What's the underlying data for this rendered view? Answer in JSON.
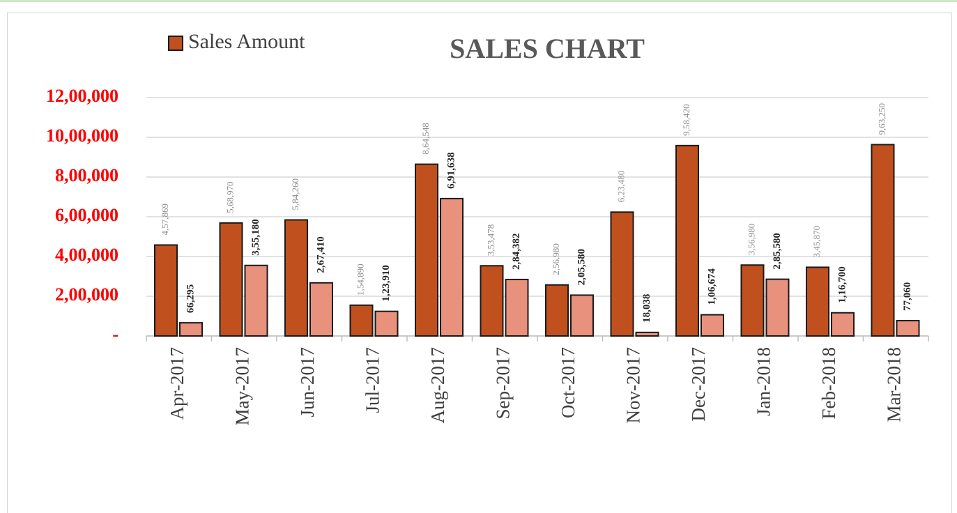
{
  "chart_data": {
    "type": "bar",
    "title": "SALES CHART",
    "categories": [
      "Apr-2017",
      "May-2017",
      "Jun-2017",
      "Jul-2017",
      "Aug-2017",
      "Sep-2017",
      "Oct-2017",
      "Nov-2017",
      "Dec-2017",
      "Jan-2018",
      "Feb-2018",
      "Mar-2018"
    ],
    "series": [
      {
        "name": "Sales Amount",
        "color": "#c0501e",
        "values": [
          457869,
          568970,
          584260,
          154890,
          864548,
          353478,
          256980,
          623480,
          958420,
          356980,
          345870,
          963250
        ],
        "value_labels": [
          "4,57,869",
          "5,68,970",
          "5,84,260",
          "1,54,890",
          "8,64,548",
          "3,53,478",
          "2,56,980",
          "6,23,480",
          "9,58,420",
          "3,56,980",
          "3,45,870",
          "9,63,250"
        ]
      },
      {
        "color": "#e8917c",
        "values": [
          66295,
          355180,
          267410,
          123910,
          691638,
          284382,
          205580,
          18038,
          106674,
          285580,
          116700,
          77060
        ],
        "value_labels": [
          "66,295",
          "3,55,180",
          "2,67,410",
          "1,23,910",
          "6,91,638",
          "2,84,382",
          "2,05,580",
          "18,038",
          "1,06,674",
          "2,85,580",
          "1,16,700",
          "77,060"
        ]
      }
    ],
    "ylim": [
      0,
      1200000
    ],
    "yticks": [
      {
        "value": 0,
        "label": "-"
      },
      {
        "value": 200000,
        "label": "2,00,000"
      },
      {
        "value": 400000,
        "label": "4,00,000"
      },
      {
        "value": 600000,
        "label": "6,00,000"
      },
      {
        "value": 800000,
        "label": "8,00,000"
      },
      {
        "value": 1000000,
        "label": "10,00,000"
      },
      {
        "value": 1200000,
        "label": "12,00,000"
      }
    ],
    "grid": true,
    "legend": "top-left"
  }
}
